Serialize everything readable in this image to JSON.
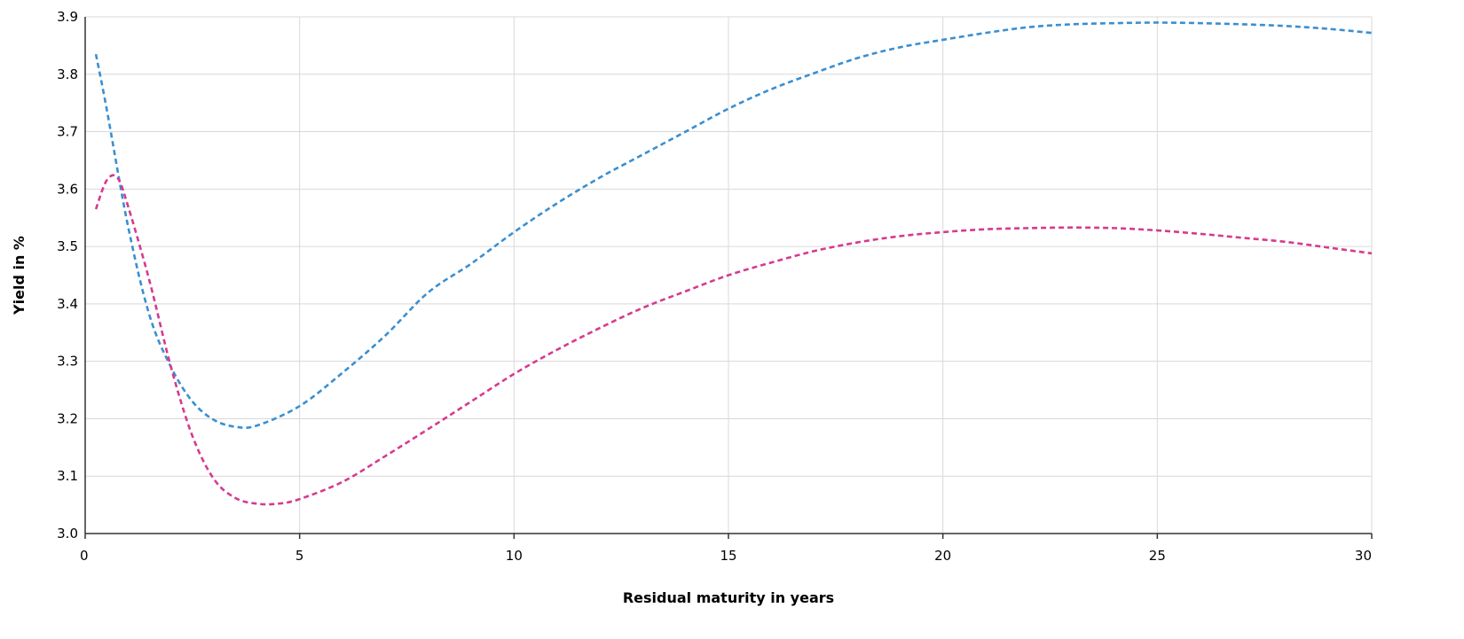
{
  "chart_data": {
    "type": "line",
    "title": "",
    "xlabel": "Residual maturity in years",
    "ylabel": "Yield in %",
    "xlim": [
      0,
      30
    ],
    "ylim": [
      3.0,
      3.9
    ],
    "xticks": [
      0,
      5,
      10,
      15,
      20,
      25,
      30
    ],
    "yticks": [
      3.0,
      3.1,
      3.2,
      3.3,
      3.4,
      3.5,
      3.6,
      3.7,
      3.8,
      3.9
    ],
    "x_tick_labels": [
      "0",
      "5",
      "10",
      "15",
      "20",
      "25",
      "30"
    ],
    "y_tick_labels": [
      "3.0",
      "3.1",
      "3.2",
      "3.3",
      "3.4",
      "3.5",
      "3.6",
      "3.7",
      "3.8",
      "3.9"
    ],
    "grid": true,
    "line_style": "dashed",
    "series": [
      {
        "color": "#3a8fd0",
        "x": [
          0.25,
          0.5,
          1,
          1.5,
          2,
          2.5,
          3,
          3.5,
          4,
          5,
          6,
          7,
          8,
          9,
          10,
          11,
          12,
          13,
          14,
          15,
          16,
          17,
          18,
          19,
          20,
          21,
          22,
          23,
          24,
          25,
          26,
          27,
          28,
          29,
          30
        ],
        "y": [
          3.835,
          3.74,
          3.535,
          3.38,
          3.29,
          3.23,
          3.198,
          3.186,
          3.188,
          3.222,
          3.28,
          3.345,
          3.42,
          3.47,
          3.525,
          3.575,
          3.62,
          3.66,
          3.7,
          3.74,
          3.774,
          3.802,
          3.828,
          3.847,
          3.86,
          3.872,
          3.882,
          3.887,
          3.889,
          3.89,
          3.889,
          3.887,
          3.884,
          3.879,
          3.872
        ]
      },
      {
        "color": "#d63a8e",
        "x": [
          0.25,
          0.5,
          0.75,
          1,
          1.5,
          2,
          2.5,
          3,
          3.5,
          4,
          4.5,
          5,
          6,
          7,
          8,
          9,
          10,
          11,
          12,
          13,
          14,
          15,
          16,
          17,
          18,
          19,
          20,
          21,
          22,
          23,
          24,
          25,
          26,
          27,
          28,
          29,
          30
        ],
        "y": [
          3.565,
          3.615,
          3.62,
          3.57,
          3.44,
          3.29,
          3.17,
          3.095,
          3.062,
          3.052,
          3.052,
          3.06,
          3.09,
          3.135,
          3.182,
          3.23,
          3.278,
          3.32,
          3.358,
          3.393,
          3.422,
          3.45,
          3.472,
          3.492,
          3.507,
          3.518,
          3.525,
          3.53,
          3.532,
          3.533,
          3.532,
          3.528,
          3.522,
          3.515,
          3.508,
          3.498,
          3.488
        ]
      }
    ]
  }
}
